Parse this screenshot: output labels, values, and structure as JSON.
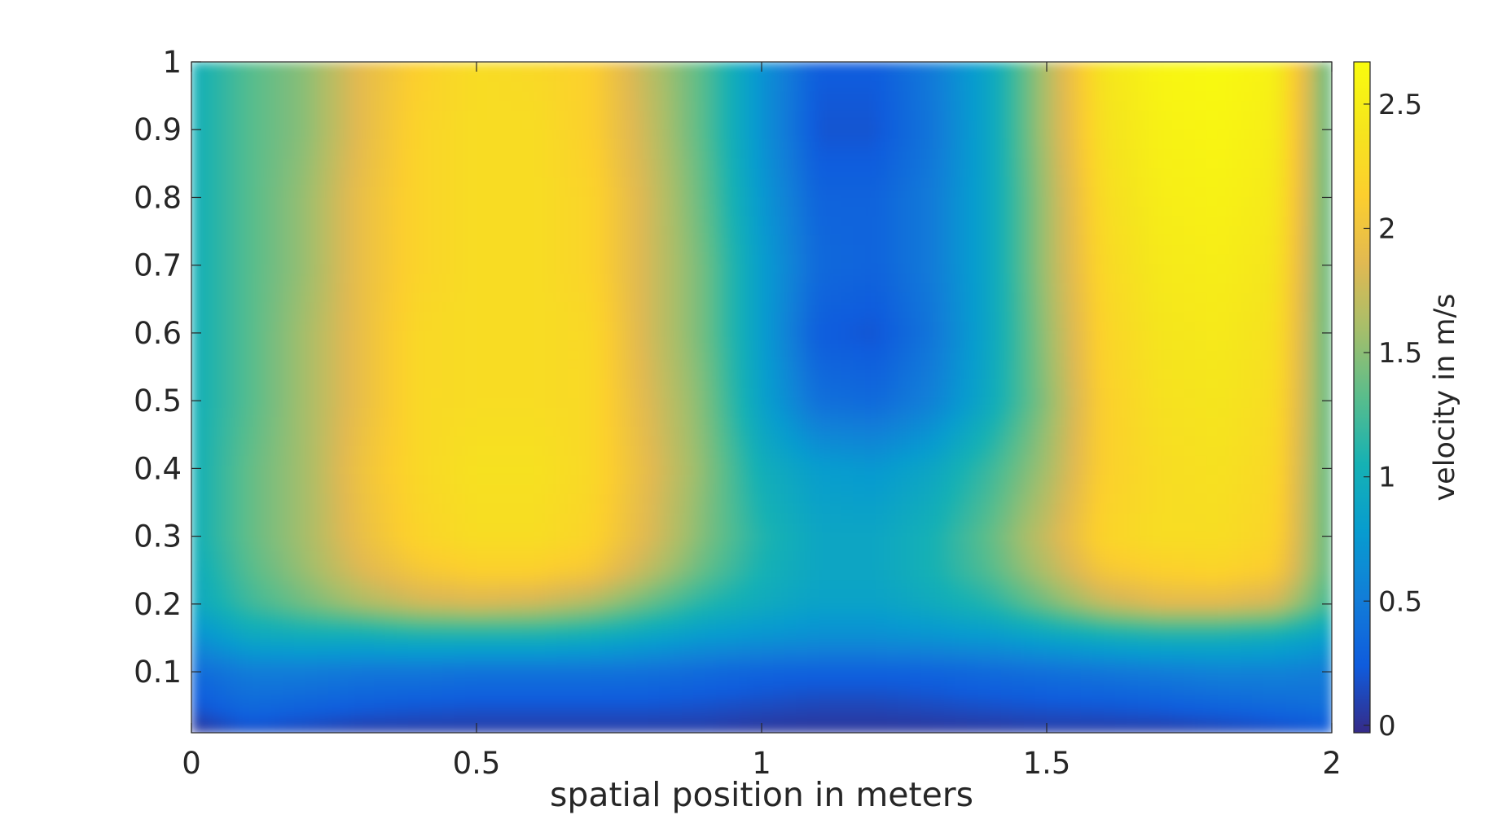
{
  "chart_data": {
    "type": "heatmap",
    "title": "",
    "xlabel": "spatial position in meters",
    "ylabel": "",
    "xlim": [
      0,
      2
    ],
    "ylim": [
      0.01,
      1
    ],
    "xticks": [
      0,
      0.5,
      1,
      1.5,
      2
    ],
    "xtick_labels": [
      "0",
      "0.5",
      "1",
      "1.5",
      "2"
    ],
    "yticks": [
      0.1,
      0.2,
      0.3,
      0.4,
      0.5,
      0.6,
      0.7,
      0.8,
      0.9,
      1
    ],
    "ytick_labels": [
      "0.1",
      "0.2",
      "0.3",
      "0.4",
      "0.5",
      "0.6",
      "0.7",
      "0.8",
      "0.9",
      "1"
    ],
    "grid": false,
    "colormap": "parula",
    "colorbar": {
      "label": "velocity in m/s",
      "range": [
        -0.03,
        2.67
      ],
      "ticks": [
        0,
        0.5,
        1,
        1.5,
        2,
        2.5
      ],
      "tick_labels": [
        "0",
        "0.5",
        "1",
        "1.5",
        "2",
        "2.5"
      ]
    },
    "x": [
      0,
      0.1,
      0.2,
      0.3,
      0.4,
      0.5,
      0.6,
      0.7,
      0.8,
      0.9,
      1.0,
      1.1,
      1.2,
      1.3,
      1.4,
      1.5,
      1.6,
      1.7,
      1.8,
      1.9,
      2.0
    ],
    "y": [
      0.01,
      0.05,
      0.1,
      0.15,
      0.2,
      0.25,
      0.3,
      0.4,
      0.5,
      0.6,
      0.7,
      0.8,
      0.9,
      1.0
    ],
    "z": [
      [
        0.0,
        0.15,
        0.1,
        0.05,
        0.05,
        0.05,
        0.05,
        0.05,
        0.05,
        0.05,
        0.02,
        0.02,
        0.02,
        0.02,
        0.03,
        0.05,
        0.05,
        0.05,
        0.08,
        0.12,
        0.2
      ],
      [
        0.2,
        0.35,
        0.3,
        0.25,
        0.22,
        0.2,
        0.2,
        0.2,
        0.2,
        0.18,
        0.15,
        0.12,
        0.12,
        0.15,
        0.18,
        0.2,
        0.22,
        0.25,
        0.3,
        0.35,
        0.4
      ],
      [
        0.35,
        0.5,
        0.5,
        0.45,
        0.45,
        0.42,
        0.42,
        0.42,
        0.4,
        0.35,
        0.3,
        0.28,
        0.28,
        0.3,
        0.35,
        0.4,
        0.45,
        0.5,
        0.55,
        0.55,
        0.5
      ],
      [
        0.65,
        0.9,
        0.95,
        0.95,
        1.0,
        1.0,
        1.0,
        0.95,
        0.85,
        0.75,
        0.7,
        0.65,
        0.65,
        0.7,
        0.75,
        0.85,
        0.95,
        1.0,
        1.0,
        0.95,
        0.8
      ],
      [
        0.9,
        1.2,
        1.4,
        1.6,
        1.75,
        1.8,
        1.75,
        1.6,
        1.35,
        1.1,
        0.95,
        0.85,
        0.85,
        0.95,
        1.1,
        1.4,
        1.7,
        1.85,
        1.85,
        1.75,
        1.2
      ],
      [
        0.95,
        1.3,
        1.55,
        1.85,
        2.05,
        2.15,
        2.15,
        2.05,
        1.7,
        1.35,
        1.05,
        0.9,
        0.9,
        1.05,
        1.3,
        1.65,
        2.05,
        2.15,
        2.2,
        2.1,
        1.3
      ],
      [
        1.0,
        1.35,
        1.6,
        1.95,
        2.2,
        2.3,
        2.3,
        2.2,
        1.85,
        1.45,
        1.1,
        0.9,
        0.9,
        1.05,
        1.35,
        1.75,
        2.2,
        2.3,
        2.3,
        2.2,
        1.3
      ],
      [
        1.0,
        1.35,
        1.6,
        2.0,
        2.25,
        2.35,
        2.35,
        2.25,
        1.9,
        1.5,
        1.0,
        0.8,
        0.75,
        0.9,
        1.2,
        1.6,
        2.15,
        2.3,
        2.35,
        2.25,
        1.3
      ],
      [
        1.0,
        1.3,
        1.6,
        1.95,
        2.25,
        2.3,
        2.3,
        2.25,
        1.85,
        1.45,
        0.85,
        0.4,
        0.35,
        0.55,
        0.95,
        1.5,
        2.15,
        2.35,
        2.4,
        2.3,
        1.3
      ],
      [
        1.0,
        1.3,
        1.6,
        1.95,
        2.25,
        2.3,
        2.3,
        2.25,
        1.8,
        1.4,
        0.8,
        0.25,
        0.2,
        0.45,
        0.9,
        1.55,
        2.2,
        2.4,
        2.45,
        2.35,
        1.3
      ],
      [
        1.0,
        1.3,
        1.55,
        1.95,
        2.2,
        2.3,
        2.3,
        2.2,
        1.8,
        1.4,
        0.8,
        0.35,
        0.3,
        0.5,
        0.9,
        1.6,
        2.25,
        2.45,
        2.5,
        2.4,
        1.3
      ],
      [
        1.0,
        1.3,
        1.55,
        1.95,
        2.2,
        2.3,
        2.3,
        2.2,
        1.8,
        1.35,
        0.75,
        0.3,
        0.3,
        0.5,
        0.9,
        1.6,
        2.3,
        2.5,
        2.55,
        2.45,
        1.3
      ],
      [
        1.0,
        1.3,
        1.5,
        1.9,
        2.2,
        2.3,
        2.3,
        2.15,
        1.75,
        1.3,
        0.7,
        0.2,
        0.2,
        0.45,
        0.9,
        1.65,
        2.35,
        2.55,
        2.6,
        2.5,
        1.3
      ],
      [
        1.0,
        1.3,
        1.5,
        1.9,
        2.15,
        2.3,
        2.25,
        2.15,
        1.7,
        1.3,
        0.7,
        0.25,
        0.25,
        0.5,
        0.9,
        1.65,
        2.4,
        2.6,
        2.65,
        2.55,
        1.3
      ]
    ]
  }
}
